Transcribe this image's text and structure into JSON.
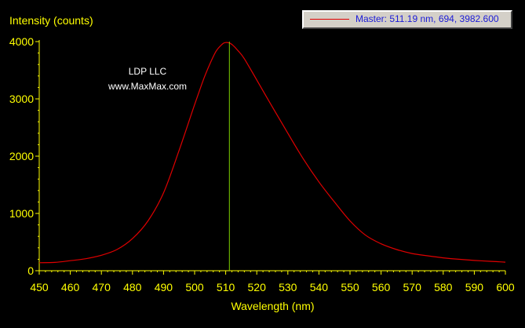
{
  "chart_data": {
    "type": "line",
    "ylabel": "Intensity (counts)",
    "xlabel": "Wavelength (nm)",
    "xlim": [
      450,
      600
    ],
    "ylim": [
      0,
      4000
    ],
    "xticks": [
      450,
      460,
      470,
      480,
      490,
      500,
      510,
      520,
      530,
      540,
      550,
      560,
      570,
      580,
      590,
      600
    ],
    "yticks": [
      0,
      1000,
      2000,
      3000,
      4000
    ],
    "grid": false,
    "legend_position": "top-right",
    "legend_text": "Master: 511.19 nm, 694, 3982.600",
    "annotations": [
      "LDP LLC",
      "www.MaxMax.com"
    ],
    "cursor_x": 511.19,
    "series": [
      {
        "color": "#e00000",
        "x": [
          450,
          455,
          460,
          465,
          470,
          475,
          480,
          485,
          490,
          495,
          500,
          503,
          505,
          507,
          509,
          510,
          511,
          512,
          514,
          516,
          520,
          525,
          530,
          535,
          540,
          545,
          550,
          555,
          560,
          565,
          570,
          575,
          580,
          585,
          590,
          595,
          600
        ],
        "y": [
          140,
          145,
          175,
          210,
          270,
          370,
          560,
          870,
          1360,
          2100,
          2900,
          3360,
          3620,
          3840,
          3960,
          3983,
          3978,
          3950,
          3840,
          3700,
          3330,
          2860,
          2400,
          1950,
          1550,
          1200,
          870,
          620,
          470,
          370,
          300,
          260,
          225,
          200,
          180,
          165,
          150
        ]
      }
    ],
    "cursor_color": "#7dd000",
    "axis_color": "#ffff00",
    "label_color": "#ffff00"
  }
}
